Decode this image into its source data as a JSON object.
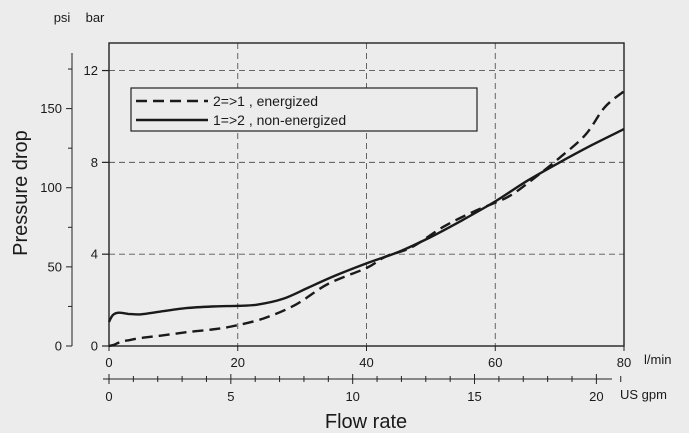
{
  "chart_data": {
    "type": "line",
    "title": "",
    "xlabel": "Flow rate",
    "ylabel": "Pressure drop",
    "x_unit_primary": "l/min",
    "x_unit_secondary": "US gpm",
    "y_unit_left": "psi",
    "y_unit_right": "bar",
    "x_primary_ticks": [
      "0",
      "20",
      "40",
      "60",
      "80"
    ],
    "x_secondary_ticks": [
      "0",
      "5",
      "10",
      "15",
      "20"
    ],
    "psi_ticks": [
      "0",
      "50",
      "100",
      "150"
    ],
    "bar_ticks": [
      "0",
      "4",
      "8",
      "12"
    ],
    "xlim": [
      0,
      80
    ],
    "ylim_bar": [
      0,
      13.2
    ],
    "grid": "dashed at 20, 40, 60 l/min and 4, 8, 12 bar",
    "legend_position": "top-left",
    "series": [
      {
        "name": "2=>1 , energized",
        "style": "dashed",
        "color": "#1a1a1a",
        "x": [
          0,
          0.5,
          1,
          1.5,
          2,
          3,
          5,
          8,
          12,
          16,
          19,
          24,
          29,
          34,
          40,
          43,
          47,
          52,
          57,
          62,
          66,
          70,
          74,
          77,
          80
        ],
        "y": [
          0.0,
          0.03,
          0.08,
          0.15,
          0.2,
          0.25,
          0.35,
          0.45,
          0.6,
          0.72,
          0.85,
          1.2,
          1.8,
          2.7,
          3.4,
          3.9,
          4.3,
          5.2,
          5.9,
          6.5,
          7.3,
          8.2,
          9.2,
          10.4,
          11.1
        ]
      },
      {
        "name": "1=>2 , non-energized",
        "style": "solid",
        "color": "#1a1a1a",
        "x": [
          0,
          0.6,
          1.5,
          3,
          5,
          8,
          12,
          16,
          20,
          23,
          27,
          31,
          35,
          40,
          45,
          50,
          55,
          60,
          65,
          70,
          75,
          80
        ],
        "y": [
          1.05,
          1.35,
          1.45,
          1.4,
          1.38,
          1.5,
          1.65,
          1.72,
          1.75,
          1.8,
          2.05,
          2.55,
          3.05,
          3.6,
          4.1,
          4.75,
          5.5,
          6.3,
          7.2,
          8.0,
          8.75,
          9.45
        ]
      }
    ]
  }
}
